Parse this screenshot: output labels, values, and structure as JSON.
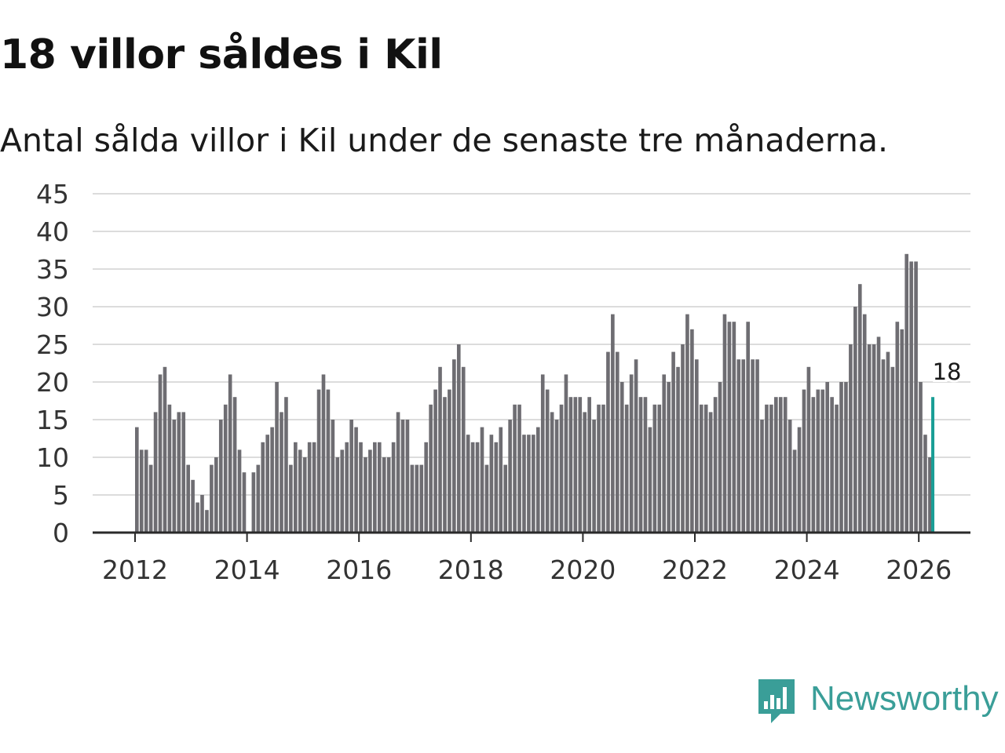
{
  "title": "18 villor såldes i Kil",
  "subtitle": "Antal sålda villor i Kil under de senaste tre månaderna.",
  "brand": {
    "name": "Newsworthy",
    "color": "#3a9e98"
  },
  "colors": {
    "bar": "#6e6d72",
    "highlight": "#1a9e96",
    "grid": "#dcdcdc",
    "axis": "#2a2a2a"
  },
  "chart_data": {
    "type": "bar",
    "title": "18 villor såldes i Kil",
    "subtitle": "Antal sålda villor i Kil under de senaste tre månaderna.",
    "xlabel": "",
    "ylabel": "",
    "ylim": [
      0,
      45
    ],
    "yticks": [
      0,
      5,
      10,
      15,
      20,
      25,
      30,
      35,
      40,
      45
    ],
    "xtick_labels": [
      "2012",
      "2014",
      "2016",
      "2018",
      "2020",
      "2022",
      "2024",
      "2026"
    ],
    "start_year": 2012,
    "start_month": 1,
    "grid": true,
    "highlight_label": "18",
    "series": [
      {
        "name": "Antal sålda villor",
        "values": [
          14,
          11,
          11,
          9,
          16,
          21,
          22,
          17,
          15,
          16,
          16,
          9,
          7,
          4,
          5,
          3,
          9,
          10,
          15,
          17,
          21,
          18,
          11,
          8,
          0,
          8,
          9,
          12,
          13,
          14,
          20,
          16,
          18,
          9,
          12,
          11,
          10,
          12,
          12,
          19,
          21,
          19,
          15,
          10,
          11,
          12,
          15,
          14,
          12,
          10,
          11,
          12,
          12,
          10,
          10,
          12,
          16,
          15,
          15,
          9,
          9,
          9,
          12,
          17,
          19,
          22,
          18,
          19,
          23,
          25,
          22,
          13,
          12,
          12,
          14,
          9,
          13,
          12,
          14,
          9,
          15,
          17,
          17,
          13,
          13,
          13,
          14,
          21,
          19,
          16,
          15,
          17,
          21,
          18,
          18,
          18,
          16,
          18,
          15,
          17,
          17,
          24,
          29,
          24,
          20,
          17,
          21,
          23,
          18,
          18,
          14,
          17,
          17,
          21,
          20,
          24,
          22,
          25,
          29,
          27,
          23,
          17,
          17,
          16,
          18,
          20,
          29,
          28,
          28,
          23,
          23,
          28,
          23,
          23,
          15,
          17,
          17,
          18,
          18,
          18,
          15,
          11,
          14,
          19,
          22,
          18,
          19,
          19,
          20,
          18,
          17,
          20,
          20,
          25,
          30,
          33,
          29,
          25,
          25,
          26,
          23,
          24,
          22,
          28,
          27,
          37,
          36,
          36,
          20,
          13,
          10,
          18
        ]
      }
    ]
  }
}
